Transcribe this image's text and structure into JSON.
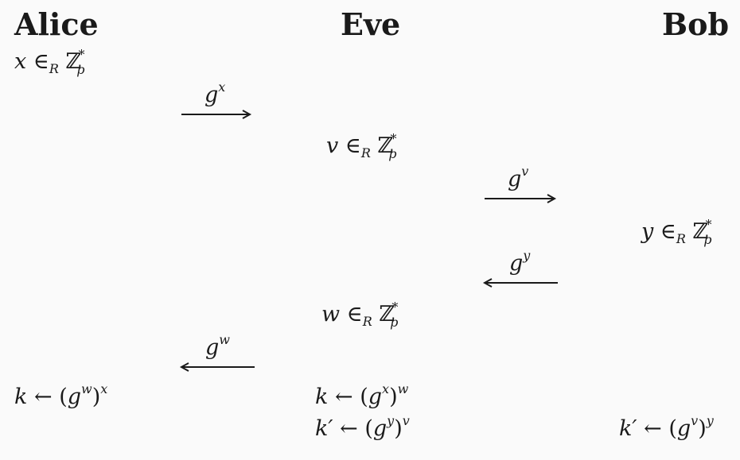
{
  "parties": {
    "alice": "Alice",
    "eve": "Eve",
    "bob": "Bob"
  },
  "steps": {
    "alice_choose": {
      "var": "x",
      "rel": "∈",
      "rel_sub": "R",
      "set": "ℤ",
      "set_sup": "*",
      "set_sub": "p"
    },
    "eve_choose_v": {
      "var": "v",
      "rel": "∈",
      "rel_sub": "R",
      "set": "ℤ",
      "set_sup": "*",
      "set_sub": "p"
    },
    "bob_choose": {
      "var": "y",
      "rel": "∈",
      "rel_sub": "R",
      "set": "ℤ",
      "set_sup": "*",
      "set_sub": "p"
    },
    "eve_choose_w": {
      "var": "w",
      "rel": "∈",
      "rel_sub": "R",
      "set": "ℤ",
      "set_sup": "*",
      "set_sub": "p"
    }
  },
  "messages": {
    "gx": {
      "base": "g",
      "exp": "x",
      "direction": "right"
    },
    "gv": {
      "base": "g",
      "exp": "v",
      "direction": "right"
    },
    "gy": {
      "base": "g",
      "exp": "y",
      "direction": "left"
    },
    "gw": {
      "base": "g",
      "exp": "w",
      "direction": "left"
    }
  },
  "keys": {
    "alice_k": {
      "lhs": "k",
      "arrow": "←",
      "open": "(",
      "base": "g",
      "inner_exp": "w",
      "close": ")",
      "outer_exp": "x"
    },
    "eve_k": {
      "lhs": "k",
      "arrow": "←",
      "open": "(",
      "base": "g",
      "inner_exp": "x",
      "close": ")",
      "outer_exp": "w"
    },
    "eve_kprime": {
      "lhs": "k′",
      "arrow": "←",
      "open": "(",
      "base": "g",
      "inner_exp": "y",
      "close": ")",
      "outer_exp": "v"
    },
    "bob_kprime": {
      "lhs": "k′",
      "arrow": "←",
      "open": "(",
      "base": "g",
      "inner_exp": "v",
      "close": ")",
      "outer_exp": "y"
    }
  }
}
